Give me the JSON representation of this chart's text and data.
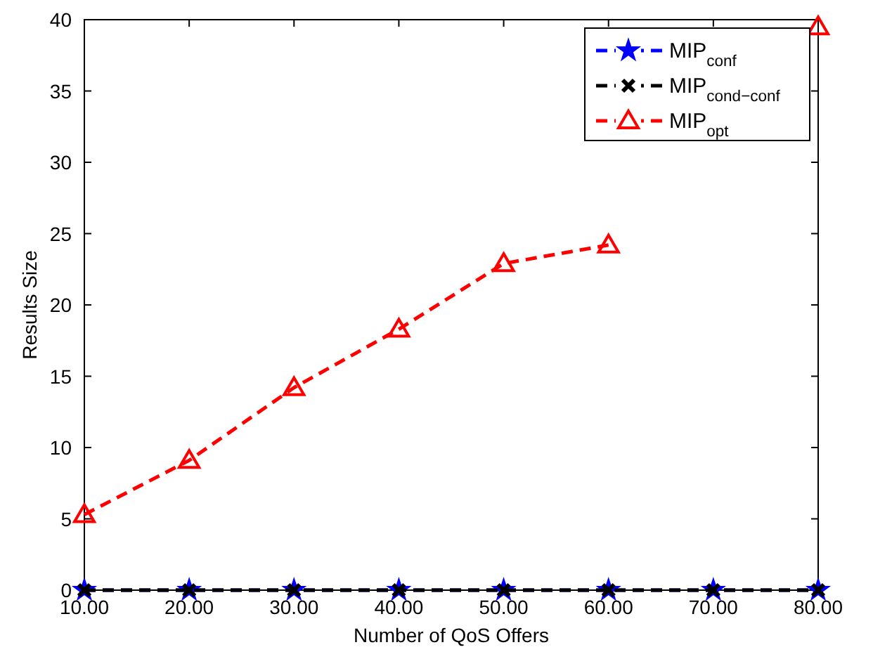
{
  "chart_data": {
    "type": "line",
    "xlabel": "Number of QoS Offers",
    "ylabel": "Results Size",
    "x": [
      10,
      20,
      30,
      40,
      50,
      60,
      70,
      80
    ],
    "xlim": [
      10,
      80
    ],
    "xticks": [
      {
        "value": 10,
        "label": "10.00"
      },
      {
        "value": 20,
        "label": "20.00"
      },
      {
        "value": 30,
        "label": "30.00"
      },
      {
        "value": 40,
        "label": "40.00"
      },
      {
        "value": 50,
        "label": "50.00"
      },
      {
        "value": 60,
        "label": "60.00"
      },
      {
        "value": 70,
        "label": "70.00"
      },
      {
        "value": 80,
        "label": "80.00"
      }
    ],
    "ylim": [
      0,
      40
    ],
    "yticks": [
      0,
      5,
      10,
      15,
      20,
      25,
      30,
      35,
      40
    ],
    "grid": false,
    "legend": "top right",
    "line_style": "dashed",
    "series": [
      {
        "name": "MIP$_{conf}$",
        "color": "#0000ff",
        "marker": "star",
        "values": [
          0,
          0,
          0,
          0,
          0,
          0,
          0,
          0
        ]
      },
      {
        "name": "MIP$_{cond−conf}$",
        "color": "#000000",
        "marker": "cross",
        "values": [
          0,
          0,
          0,
          0,
          0,
          0,
          0,
          0
        ]
      },
      {
        "name": "MIP$_{opt}$",
        "color": "#ff0000",
        "marker": "triangle",
        "values": [
          5.3,
          9.1,
          14.2,
          18.3,
          22.9,
          24.2,
          null,
          39.5
        ]
      }
    ]
  }
}
